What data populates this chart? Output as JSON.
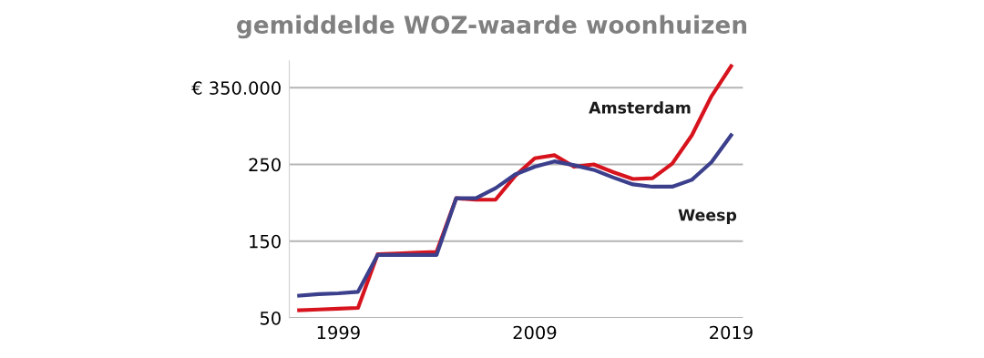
{
  "chart_data": {
    "type": "line",
    "title": "gemiddelde WOZ-waarde woonhuizen",
    "x": [
      1997,
      1998,
      1999,
      2000,
      2001,
      2002,
      2003,
      2004,
      2005,
      2006,
      2007,
      2008,
      2009,
      2010,
      2011,
      2012,
      2013,
      2014,
      2015,
      2016,
      2017,
      2018,
      2019
    ],
    "series": [
      {
        "name": "Amsterdam",
        "color": "#d7141e",
        "values": [
          60,
          61,
          62,
          63,
          133,
          134,
          135,
          136,
          206,
          204,
          204,
          235,
          258,
          262,
          247,
          250,
          240,
          231,
          232,
          251,
          288,
          339,
          378
        ]
      },
      {
        "name": "Weesp",
        "color": "#3b3f8c",
        "values": [
          79,
          81,
          82,
          84,
          132,
          132,
          132,
          132,
          206,
          206,
          219,
          237,
          247,
          254,
          249,
          243,
          233,
          224,
          221,
          221,
          230,
          253,
          288
        ]
      }
    ],
    "xlim": [
      1996.5,
      2019.6
    ],
    "xticks": [
      1999,
      2009,
      2019
    ],
    "ylim": [
      50,
      385
    ],
    "yticks": [
      {
        "value": 50,
        "label": "50"
      },
      {
        "value": 150,
        "label": "150"
      },
      {
        "value": 250,
        "label": "250"
      },
      {
        "value": 350,
        "label": "€ 350.000"
      }
    ],
    "grid": "y",
    "legend": false,
    "marker": "none",
    "line_style": "solid"
  }
}
